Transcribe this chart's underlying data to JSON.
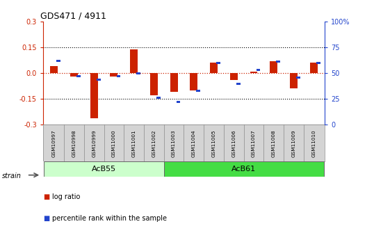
{
  "title": "GDS471 / 4911",
  "samples": [
    "GSM10997",
    "GSM10998",
    "GSM10999",
    "GSM11000",
    "GSM11001",
    "GSM11002",
    "GSM11003",
    "GSM11004",
    "GSM11005",
    "GSM11006",
    "GSM11007",
    "GSM11008",
    "GSM11009",
    "GSM11010"
  ],
  "log_ratio": [
    0.04,
    -0.02,
    -0.26,
    -0.02,
    0.14,
    -0.13,
    -0.11,
    -0.1,
    0.06,
    -0.04,
    0.01,
    0.07,
    -0.09,
    0.06
  ],
  "percentile_rank": [
    62,
    47,
    44,
    47,
    50,
    26,
    22,
    33,
    60,
    40,
    53,
    61,
    46,
    60
  ],
  "ylim_left": [
    -0.3,
    0.3
  ],
  "ylim_right": [
    0,
    100
  ],
  "yticks_left": [
    -0.3,
    -0.15,
    0.0,
    0.15,
    0.3
  ],
  "yticks_right": [
    0,
    25,
    50,
    75,
    100
  ],
  "ytick_labels_right": [
    "0",
    "25",
    "50",
    "75",
    "100%"
  ],
  "hlines": [
    0.15,
    -0.15
  ],
  "groups": [
    {
      "label": "AcB55",
      "start": 0,
      "end": 5,
      "color": "#ccffcc"
    },
    {
      "label": "AcB61",
      "start": 6,
      "end": 13,
      "color": "#44dd44"
    }
  ],
  "log_ratio_color": "#cc2200",
  "percentile_color": "#2244cc",
  "background_color": "#ffffff",
  "sample_label_bg": "#d4d4d4",
  "legend_items": [
    "log ratio",
    "percentile rank within the sample"
  ],
  "strain_label": "strain"
}
